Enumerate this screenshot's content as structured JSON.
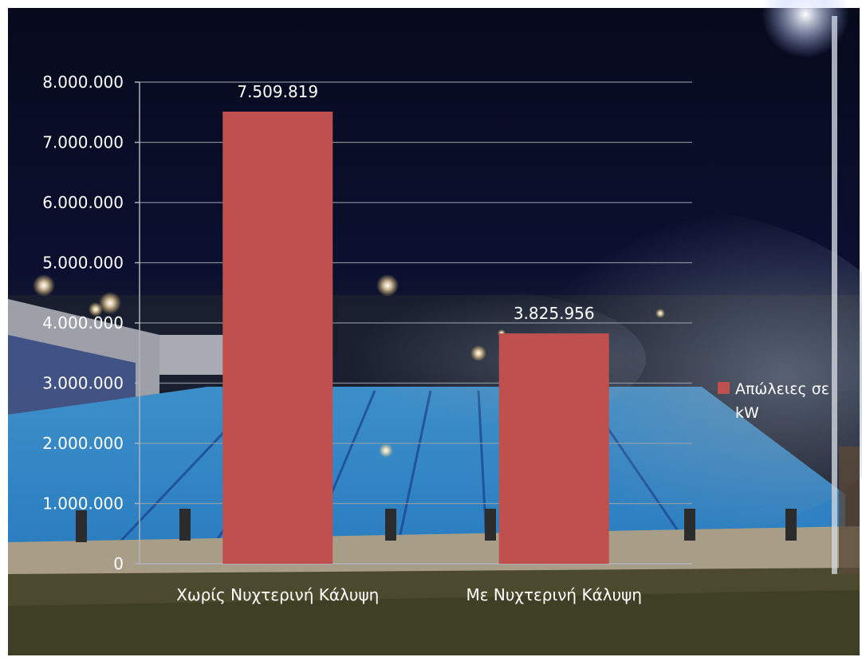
{
  "chart_data": {
    "type": "bar",
    "categories": [
      "Χωρίς Νυχτερινή Κάλυψη",
      "Με Νυχτερινή Κάλυψη"
    ],
    "series": [
      {
        "name": "Απώλειες σε kW",
        "values": [
          7509819,
          3825956
        ]
      }
    ],
    "data_labels": [
      "7.509.819",
      "3.825.956"
    ],
    "y_ticks": [
      0,
      1000000,
      2000000,
      3000000,
      4000000,
      5000000,
      6000000,
      7000000,
      8000000
    ],
    "y_tick_labels": [
      "0",
      "1.000.000",
      "2.000.000",
      "3.000.000",
      "4.000.000",
      "5.000.000",
      "6.000.000",
      "7.000.000",
      "8.000.000"
    ],
    "ylim": [
      0,
      8000000
    ],
    "grid": true,
    "legend_position": "right",
    "legend_lines": [
      "Απώλειες σε",
      "kW"
    ],
    "bar_color": "#c0504d",
    "text_color": "#ffffff",
    "background": "night photo of an outdoor swimming pool with steam"
  }
}
